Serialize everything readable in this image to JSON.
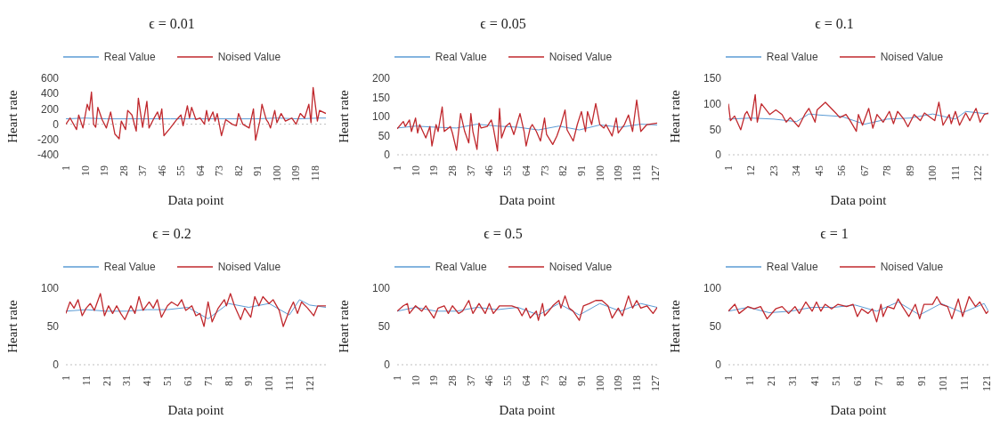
{
  "chart_data": [
    {
      "type": "line",
      "title": "ϵ = 0.01",
      "xlabel": "Data point",
      "ylabel": "Heart rate",
      "legend": "top",
      "xlim": [
        1,
        123
      ],
      "xticks": [
        1,
        10,
        19,
        28,
        37,
        46,
        55,
        64,
        73,
        82,
        91,
        100,
        109,
        118
      ],
      "ylim": [
        -400,
        600
      ],
      "yticks": [
        -400,
        -200,
        0,
        200,
        400,
        600
      ],
      "ref_lines": [
        {
          "axis": "y",
          "value": 0,
          "color": "#bfbfbf",
          "line_style": "dotted"
        }
      ],
      "series": [
        {
          "name": "Real Value",
          "color": "#5b9bd5",
          "x": [
            1,
            10,
            20,
            30,
            40,
            50,
            60,
            70,
            80,
            90,
            100,
            110,
            120,
            123
          ],
          "values": [
            70,
            80,
            70,
            70,
            70,
            70,
            70,
            70,
            70,
            70,
            80,
            70,
            80,
            80
          ]
        },
        {
          "name": "Noised Value",
          "color": "#c0282d",
          "x": [
            1,
            3,
            6,
            7,
            9,
            11,
            12,
            13,
            14,
            15,
            16,
            18,
            20,
            22,
            24,
            26,
            27,
            29,
            30,
            32,
            34,
            35,
            37,
            39,
            40,
            42,
            44,
            45,
            46,
            47,
            50,
            53,
            55,
            56,
            58,
            59,
            60,
            62,
            64,
            66,
            67,
            68,
            70,
            71,
            72,
            74,
            76,
            79,
            81,
            82,
            84,
            87,
            89,
            90,
            92,
            93,
            95,
            96,
            97,
            99,
            100,
            102,
            104,
            107,
            109,
            111,
            113,
            115,
            116,
            117,
            119,
            120,
            123
          ],
          "values": [
            0,
            80,
            -70,
            120,
            -50,
            260,
            180,
            420,
            0,
            -40,
            220,
            60,
            -50,
            160,
            -130,
            -190,
            40,
            -70,
            180,
            120,
            -90,
            340,
            -40,
            300,
            -50,
            60,
            160,
            60,
            200,
            -150,
            -50,
            60,
            120,
            -20,
            240,
            80,
            220,
            60,
            80,
            0,
            180,
            40,
            160,
            40,
            140,
            -150,
            60,
            0,
            -20,
            140,
            0,
            -50,
            200,
            -210,
            40,
            260,
            60,
            20,
            -50,
            180,
            20,
            140,
            40,
            80,
            0,
            140,
            80,
            260,
            20,
            480,
            40,
            180,
            140
          ]
        }
      ]
    },
    {
      "type": "line",
      "title": "ϵ = 0.05",
      "xlabel": "Data point",
      "ylabel": "Heart rate",
      "legend": "top",
      "xlim": [
        1,
        128
      ],
      "xticks": [
        1,
        10,
        19,
        28,
        37,
        46,
        55,
        64,
        73,
        82,
        91,
        100,
        109,
        118,
        127
      ],
      "ylim": [
        0,
        200
      ],
      "yticks": [
        0,
        50,
        100,
        150,
        200
      ],
      "ref_lines": [
        {
          "axis": "y",
          "value": 0,
          "color": "#bfbfbf",
          "line_style": "dotted"
        }
      ],
      "series": [
        {
          "name": "Real Value",
          "color": "#5b9bd5",
          "x": [
            1,
            10,
            20,
            30,
            40,
            50,
            60,
            70,
            80,
            90,
            100,
            110,
            120,
            128
          ],
          "values": [
            70,
            75,
            72,
            70,
            80,
            75,
            72,
            65,
            75,
            65,
            78,
            72,
            80,
            78
          ]
        },
        {
          "name": "Noised Value",
          "color": "#c0282d",
          "x": [
            1,
            4,
            5,
            7,
            8,
            10,
            11,
            12,
            15,
            17,
            18,
            20,
            21,
            23,
            24,
            27,
            28,
            30,
            32,
            34,
            36,
            37,
            38,
            40,
            41,
            42,
            45,
            47,
            48,
            50,
            51,
            52,
            54,
            56,
            58,
            61,
            63,
            64,
            66,
            67,
            69,
            71,
            73,
            74,
            77,
            79,
            81,
            83,
            84,
            87,
            89,
            91,
            93,
            94,
            96,
            98,
            100,
            102,
            103,
            106,
            108,
            109,
            112,
            114,
            116,
            118,
            120,
            123,
            128
          ],
          "values": [
            68,
            87,
            74,
            91,
            61,
            96,
            57,
            79,
            44,
            74,
            23,
            79,
            61,
            125,
            61,
            74,
            57,
            12,
            108,
            61,
            31,
            108,
            61,
            14,
            83,
            70,
            74,
            91,
            70,
            10,
            121,
            44,
            74,
            83,
            53,
            108,
            61,
            23,
            70,
            79,
            61,
            36,
            96,
            53,
            27,
            49,
            79,
            117,
            65,
            36,
            79,
            113,
            61,
            113,
            79,
            134,
            79,
            70,
            79,
            49,
            96,
            57,
            79,
            104,
            61,
            143,
            61,
            79,
            83
          ]
        }
      ]
    },
    {
      "type": "line",
      "title": "ϵ = 0.1",
      "xlabel": "Data point",
      "ylabel": "Heart rate",
      "legend": "top",
      "xlim": [
        1,
        127
      ],
      "xticks": [
        1,
        12,
        23,
        34,
        45,
        56,
        67,
        78,
        89,
        100,
        111,
        122
      ],
      "ylim": [
        0,
        150
      ],
      "yticks": [
        0,
        50,
        100,
        150
      ],
      "ref_lines": [
        {
          "axis": "y",
          "value": 0,
          "color": "#bfbfbf",
          "line_style": "dotted"
        }
      ],
      "series": [
        {
          "name": "Real Value",
          "color": "#5b9bd5",
          "x": [
            1,
            12,
            23,
            34,
            40,
            45,
            56,
            67,
            78,
            89,
            100,
            111,
            116,
            127
          ],
          "values": [
            70,
            72,
            70,
            65,
            80,
            78,
            75,
            60,
            70,
            72,
            80,
            70,
            85,
            80
          ]
        },
        {
          "name": "Noised Value",
          "color": "#c0282d",
          "x": [
            1,
            2,
            4,
            7,
            9,
            10,
            12,
            14,
            15,
            17,
            21,
            24,
            27,
            29,
            31,
            35,
            38,
            40,
            43,
            44,
            48,
            53,
            55,
            58,
            60,
            63,
            64,
            66,
            69,
            71,
            73,
            76,
            79,
            81,
            83,
            86,
            88,
            91,
            94,
            96,
            99,
            101,
            103,
            105,
            108,
            109,
            111,
            113,
            116,
            118,
            121,
            123,
            125,
            127
          ],
          "values": [
            100,
            67,
            76,
            49,
            79,
            85,
            67,
            118,
            64,
            100,
            79,
            88,
            79,
            64,
            73,
            55,
            79,
            91,
            64,
            88,
            103,
            82,
            73,
            79,
            67,
            46,
            79,
            58,
            91,
            52,
            79,
            64,
            85,
            61,
            85,
            70,
            55,
            79,
            67,
            82,
            73,
            67,
            103,
            58,
            79,
            61,
            85,
            58,
            82,
            67,
            91,
            64,
            79,
            82
          ]
        }
      ]
    },
    {
      "type": "line",
      "title": "ϵ = 0.2",
      "xlabel": "Data point",
      "ylabel": "Heart rate",
      "legend": "top",
      "xlim": [
        1,
        129
      ],
      "xticks": [
        1,
        11,
        21,
        31,
        41,
        51,
        61,
        71,
        81,
        91,
        101,
        111,
        121
      ],
      "ylim": [
        0,
        100
      ],
      "yticks": [
        0,
        50,
        100
      ],
      "ref_lines": [
        {
          "axis": "y",
          "value": 0,
          "color": "#bfbfbf",
          "line_style": "dotted"
        }
      ],
      "series": [
        {
          "name": "Real Value",
          "color": "#5b9bd5",
          "x": [
            1,
            11,
            21,
            31,
            41,
            51,
            61,
            71,
            81,
            91,
            101,
            111,
            116,
            121,
            129
          ],
          "values": [
            70,
            72,
            70,
            70,
            72,
            72,
            75,
            60,
            80,
            75,
            80,
            65,
            85,
            78,
            75
          ]
        },
        {
          "name": "Noised Value",
          "color": "#c0282d",
          "x": [
            1,
            3,
            5,
            7,
            9,
            11,
            13,
            15,
            18,
            20,
            22,
            24,
            26,
            28,
            30,
            33,
            35,
            37,
            39,
            42,
            44,
            46,
            48,
            51,
            53,
            56,
            58,
            60,
            63,
            65,
            67,
            69,
            71,
            73,
            76,
            79,
            80,
            82,
            84,
            87,
            89,
            92,
            94,
            96,
            98,
            101,
            103,
            106,
            108,
            111,
            113,
            115,
            117,
            120,
            123,
            125,
            129
          ],
          "values": [
            67,
            82,
            74,
            85,
            64,
            74,
            80,
            71,
            93,
            64,
            77,
            67,
            77,
            67,
            59,
            77,
            67,
            89,
            71,
            82,
            74,
            85,
            62,
            77,
            82,
            77,
            85,
            71,
            77,
            64,
            67,
            50,
            82,
            56,
            74,
            85,
            77,
            93,
            77,
            59,
            74,
            62,
            89,
            77,
            89,
            80,
            85,
            71,
            50,
            71,
            82,
            67,
            82,
            74,
            64,
            77,
            77
          ]
        }
      ]
    },
    {
      "type": "line",
      "title": "ϵ = 0.5",
      "xlabel": "Data point",
      "ylabel": "Heart rate",
      "legend": "top",
      "xlim": [
        1,
        128
      ],
      "xticks": [
        1,
        10,
        19,
        28,
        37,
        46,
        55,
        64,
        73,
        82,
        91,
        100,
        109,
        118,
        127
      ],
      "ylim": [
        0,
        100
      ],
      "yticks": [
        0,
        50,
        100
      ],
      "ref_lines": [
        {
          "axis": "y",
          "value": 0,
          "color": "#bfbfbf",
          "line_style": "dotted"
        }
      ],
      "series": [
        {
          "name": "Real Value",
          "color": "#5b9bd5",
          "x": [
            1,
            10,
            20,
            30,
            40,
            50,
            60,
            70,
            80,
            90,
            100,
            110,
            120,
            128
          ],
          "values": [
            70,
            75,
            70,
            70,
            75,
            72,
            75,
            65,
            80,
            65,
            80,
            70,
            80,
            75
          ]
        },
        {
          "name": "Noised Value",
          "color": "#c0282d",
          "x": [
            1,
            4,
            6,
            7,
            10,
            13,
            15,
            19,
            21,
            24,
            26,
            28,
            31,
            33,
            36,
            38,
            41,
            44,
            46,
            48,
            51,
            54,
            57,
            60,
            62,
            64,
            66,
            69,
            70,
            72,
            73,
            75,
            77,
            80,
            81,
            83,
            85,
            87,
            90,
            92,
            95,
            98,
            101,
            104,
            106,
            109,
            111,
            114,
            116,
            118,
            120,
            123,
            126,
            128
          ],
          "values": [
            70,
            77,
            80,
            67,
            77,
            70,
            77,
            61,
            74,
            77,
            67,
            77,
            67,
            70,
            84,
            67,
            80,
            67,
            80,
            67,
            77,
            77,
            77,
            74,
            64,
            74,
            61,
            70,
            58,
            80,
            64,
            70,
            77,
            84,
            74,
            90,
            74,
            70,
            58,
            77,
            80,
            84,
            84,
            77,
            61,
            74,
            64,
            90,
            74,
            84,
            74,
            77,
            67,
            75
          ]
        }
      ]
    },
    {
      "type": "line",
      "title": "ϵ = 1",
      "xlabel": "Data point",
      "ylabel": "Heart rate",
      "legend": "top",
      "xlim": [
        1,
        122
      ],
      "xticks": [
        1,
        11,
        21,
        31,
        41,
        51,
        61,
        71,
        81,
        91,
        101,
        111,
        121
      ],
      "ylim": [
        0,
        100
      ],
      "yticks": [
        0,
        50,
        100
      ],
      "ref_lines": [
        {
          "axis": "y",
          "value": 0,
          "color": "#bfbfbf",
          "line_style": "dotted"
        }
      ],
      "series": [
        {
          "name": "Real Value",
          "color": "#5b9bd5",
          "x": [
            1,
            10,
            20,
            30,
            40,
            50,
            60,
            70,
            80,
            90,
            100,
            110,
            120,
            122
          ],
          "values": [
            70,
            75,
            68,
            70,
            75,
            75,
            78,
            70,
            82,
            65,
            80,
            68,
            80,
            70
          ]
        },
        {
          "name": "Noised Value",
          "color": "#c0282d",
          "x": [
            1,
            4,
            6,
            10,
            13,
            16,
            19,
            23,
            26,
            29,
            32,
            34,
            37,
            40,
            42,
            44,
            46,
            49,
            52,
            56,
            59,
            61,
            63,
            66,
            68,
            70,
            72,
            73,
            75,
            78,
            80,
            82,
            85,
            88,
            90,
            92,
            96,
            98,
            100,
            103,
            105,
            108,
            110,
            113,
            116,
            118,
            121,
            122
          ],
          "values": [
            70,
            79,
            67,
            76,
            73,
            76,
            60,
            73,
            76,
            67,
            76,
            67,
            82,
            70,
            82,
            70,
            79,
            73,
            79,
            76,
            79,
            63,
            73,
            67,
            73,
            56,
            79,
            63,
            76,
            73,
            86,
            76,
            63,
            79,
            60,
            79,
            79,
            89,
            79,
            76,
            60,
            86,
            63,
            89,
            76,
            82,
            67,
            70
          ]
        }
      ]
    }
  ]
}
